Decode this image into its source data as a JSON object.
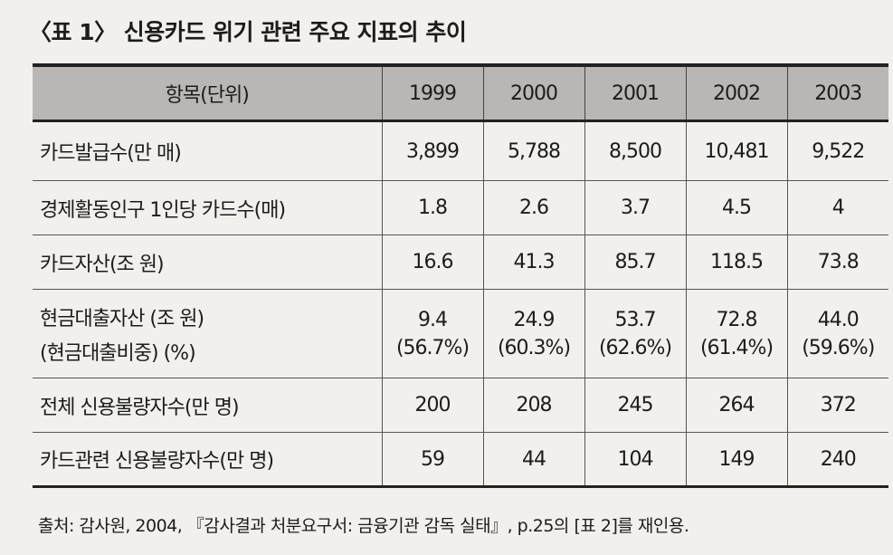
{
  "title": "〈표 1〉 신용카드 위기 관련 주요 지표의 추이",
  "table": {
    "header": [
      "항목(단위)",
      "1999",
      "2000",
      "2001",
      "2002",
      "2003"
    ],
    "rows": [
      {
        "label": "카드발급수(만 매)",
        "values": [
          "3,899",
          "5,788",
          "8,500",
          "10,481",
          "9,522"
        ]
      },
      {
        "label": "경제활동인구 1인당 카드수(매)",
        "values": [
          "1.8",
          "2.6",
          "3.7",
          "4.5",
          "4"
        ]
      },
      {
        "label": "카드자산(조 원)",
        "values": [
          "16.6",
          "41.3",
          "85.7",
          "118.5",
          "73.8"
        ]
      },
      {
        "label": "현금대출자산 (조 원)",
        "label2": "(현금대출비중) (%)",
        "values": [
          "9.4",
          "24.9",
          "53.7",
          "72.8",
          "44.0"
        ],
        "values2": [
          "(56.7%)",
          "(60.3%)",
          "(62.6%)",
          "(61.4%)",
          "(59.6%)"
        ]
      },
      {
        "label": "전체 신용불량자수(만 명)",
        "values": [
          "200",
          "208",
          "245",
          "264",
          "372"
        ]
      },
      {
        "label": "카드관련 신용불량자수(만 명)",
        "values": [
          "59",
          "44",
          "104",
          "149",
          "240"
        ]
      }
    ]
  },
  "source": "출처: 감사원, 2004, 『감사결과 처분요구서: 금융기관 감독 실태』, p.25의 [표 2]를 재인용."
}
